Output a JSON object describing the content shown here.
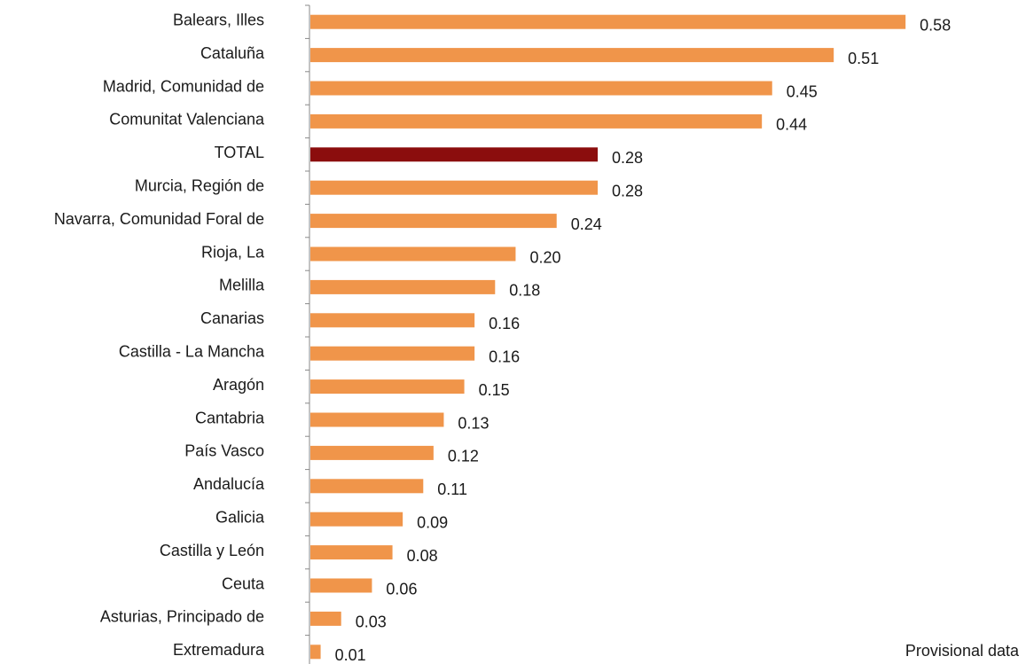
{
  "chart_data": {
    "type": "bar",
    "orientation": "horizontal",
    "categories": [
      "Balears, Illes",
      "Cataluña",
      "Madrid, Comunidad de",
      "Comunitat Valenciana",
      "TOTAL",
      "Murcia, Región de",
      "Navarra, Comunidad Foral de",
      "Rioja, La",
      "Melilla",
      "Canarias",
      "Castilla - La Mancha",
      "Aragón",
      "Cantabria",
      "País Vasco",
      "Andalucía",
      "Galicia",
      "Castilla y León",
      "Ceuta",
      "Asturias, Principado de",
      "Extremadura"
    ],
    "values": [
      0.58,
      0.51,
      0.45,
      0.44,
      0.28,
      0.28,
      0.24,
      0.2,
      0.18,
      0.16,
      0.16,
      0.15,
      0.13,
      0.12,
      0.11,
      0.09,
      0.08,
      0.06,
      0.03,
      0.01
    ],
    "value_labels": [
      "0.58",
      "0.51",
      "0.45",
      "0.44",
      "0.28",
      "0.28",
      "0.24",
      "0.20",
      "0.18",
      "0.16",
      "0.16",
      "0.15",
      "0.13",
      "0.12",
      "0.11",
      "0.09",
      "0.08",
      "0.06",
      "0.03",
      "0.01"
    ],
    "highlight_category": "TOTAL",
    "colors": {
      "bar": "#F0954A",
      "highlight": "#8B0D0D",
      "axis": "#888888"
    },
    "xlim": [
      0,
      0.6
    ],
    "grid": false
  },
  "note": "Provisional data"
}
